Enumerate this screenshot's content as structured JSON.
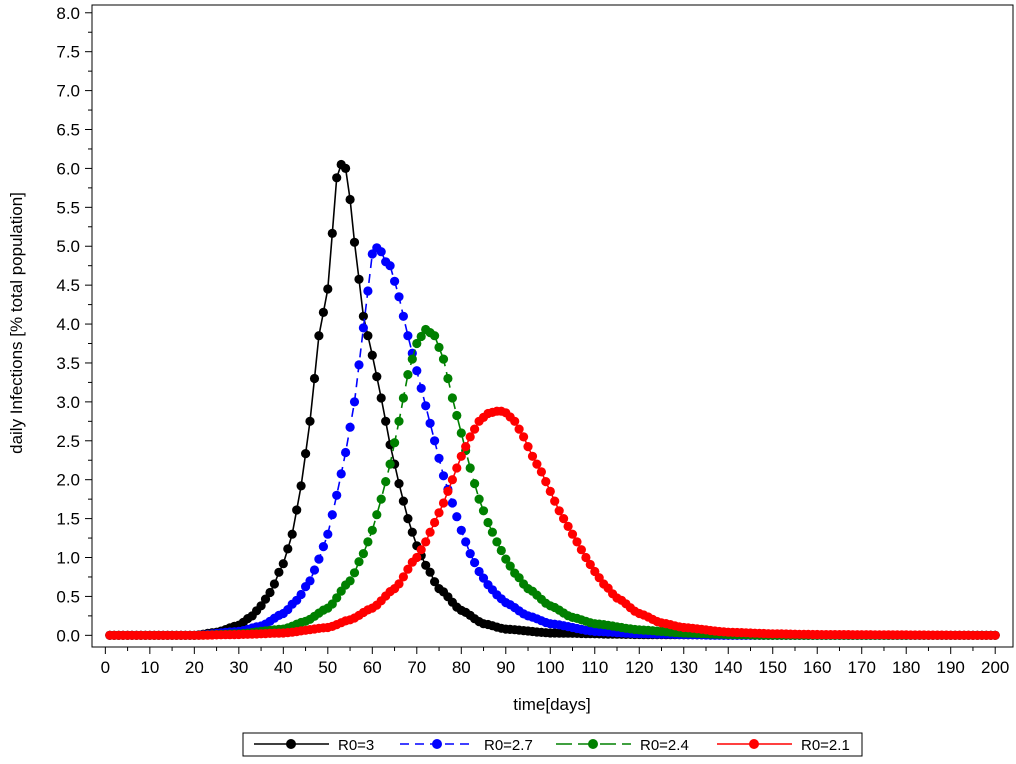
{
  "chart_data": {
    "type": "line",
    "title": "",
    "xlabel": "time[days]",
    "ylabel": "daily Infections [% total population]",
    "xlim": [
      -3,
      204
    ],
    "ylim": [
      -0.15,
      8.1
    ],
    "x_ticks": [
      "0",
      "10",
      "20",
      "30",
      "40",
      "50",
      "60",
      "70",
      "80",
      "90",
      "100",
      "110",
      "120",
      "130",
      "140",
      "150",
      "160",
      "170",
      "180",
      "190",
      "200"
    ],
    "y_ticks": [
      "0.0",
      "0.5",
      "1.0",
      "1.5",
      "2.0",
      "2.5",
      "3.0",
      "3.5",
      "4.0",
      "4.5",
      "5.0",
      "5.5",
      "6.0",
      "6.5",
      "7.0",
      "7.5",
      "8.0"
    ],
    "grid": false,
    "legend_position": "bottom",
    "series": [
      {
        "name": "R0=3",
        "color": "#000000",
        "dash": "solid",
        "peak_day": 53,
        "peak_value": 6.05,
        "x": [
          1,
          10,
          20,
          25,
          30,
          33,
          35,
          37,
          40,
          42,
          44,
          46,
          48,
          50,
          52,
          53,
          54,
          55,
          56,
          58,
          60,
          62,
          64,
          66,
          68,
          70,
          72,
          75,
          80,
          85,
          90,
          100,
          120,
          150,
          200
        ],
        "y": [
          0.0,
          0.0,
          0.0,
          0.04,
          0.13,
          0.25,
          0.38,
          0.55,
          0.92,
          1.3,
          1.92,
          2.75,
          3.85,
          4.45,
          5.88,
          6.05,
          6.0,
          5.6,
          5.05,
          4.1,
          3.6,
          3.05,
          2.45,
          1.95,
          1.5,
          1.15,
          0.9,
          0.6,
          0.32,
          0.15,
          0.08,
          0.03,
          0.01,
          0.0,
          0.0
        ]
      },
      {
        "name": "R0=2.7",
        "color": "#0000ff",
        "dash": "dashed",
        "peak_day": 61,
        "peak_value": 4.98,
        "x": [
          1,
          10,
          20,
          30,
          35,
          40,
          43,
          46,
          48,
          50,
          52,
          54,
          56,
          58,
          60,
          61,
          62,
          63,
          64,
          66,
          68,
          70,
          72,
          74,
          76,
          78,
          80,
          82,
          84,
          86,
          88,
          90,
          95,
          100,
          110,
          120,
          140,
          200
        ],
        "y": [
          0.0,
          0.0,
          0.0,
          0.05,
          0.12,
          0.28,
          0.45,
          0.7,
          0.98,
          1.3,
          1.8,
          2.35,
          3.0,
          3.95,
          4.9,
          4.98,
          4.93,
          4.8,
          4.75,
          4.35,
          3.85,
          3.4,
          2.95,
          2.5,
          2.05,
          1.7,
          1.35,
          1.05,
          0.82,
          0.65,
          0.52,
          0.42,
          0.25,
          0.15,
          0.05,
          0.02,
          0.0,
          0.0
        ]
      },
      {
        "name": "R0=2.4",
        "color": "#008000",
        "dash": "long-dash",
        "peak_day": 72,
        "peak_value": 3.93,
        "x": [
          1,
          20,
          30,
          40,
          45,
          50,
          55,
          58,
          60,
          62,
          64,
          66,
          68,
          70,
          72,
          74,
          76,
          78,
          80,
          82,
          84,
          86,
          88,
          90,
          92,
          95,
          100,
          105,
          110,
          120,
          130,
          140,
          150,
          200
        ],
        "y": [
          0.0,
          0.0,
          0.02,
          0.08,
          0.18,
          0.35,
          0.7,
          1.05,
          1.35,
          1.75,
          2.2,
          2.75,
          3.35,
          3.75,
          3.93,
          3.85,
          3.55,
          3.05,
          2.6,
          2.15,
          1.75,
          1.45,
          1.2,
          0.98,
          0.8,
          0.6,
          0.38,
          0.23,
          0.15,
          0.07,
          0.03,
          0.01,
          0.0,
          0.0
        ]
      },
      {
        "name": "R0=2.1",
        "color": "#ff0000",
        "dash": "solid",
        "peak_day": 89,
        "peak_value": 2.88,
        "x": [
          1,
          20,
          30,
          40,
          50,
          55,
          60,
          65,
          70,
          72,
          74,
          76,
          78,
          80,
          82,
          84,
          86,
          88,
          89,
          90,
          92,
          94,
          96,
          98,
          100,
          102,
          104,
          106,
          108,
          110,
          112,
          115,
          120,
          125,
          130,
          140,
          150,
          160,
          200
        ],
        "y": [
          0.0,
          0.0,
          0.01,
          0.03,
          0.1,
          0.2,
          0.35,
          0.6,
          1.0,
          1.2,
          1.45,
          1.7,
          2.0,
          2.3,
          2.55,
          2.75,
          2.85,
          2.88,
          2.88,
          2.86,
          2.75,
          2.55,
          2.3,
          2.1,
          1.85,
          1.6,
          1.4,
          1.2,
          1.0,
          0.82,
          0.66,
          0.48,
          0.28,
          0.16,
          0.1,
          0.04,
          0.02,
          0.01,
          0.0
        ]
      }
    ]
  }
}
